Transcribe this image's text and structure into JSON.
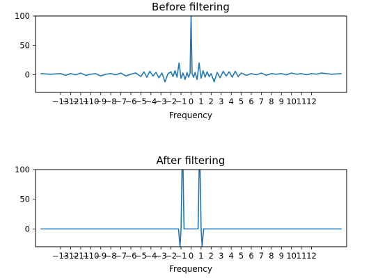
{
  "chart_data": [
    {
      "type": "line",
      "title": "Before filtering",
      "xlabel": "Frequency",
      "ylabel": "",
      "xlim": [
        -15.5,
        15.5
      ],
      "ylim": [
        -30,
        100
      ],
      "yticks": [
        0,
        50,
        100
      ],
      "xticks": [
        -13,
        -12,
        -11,
        -10,
        -9,
        -8,
        -7,
        -6,
        -5,
        -4,
        -3,
        -2,
        -1,
        0,
        1,
        2,
        3,
        4,
        5,
        6,
        7,
        8,
        9,
        10,
        11,
        12
      ],
      "xtick_labels": [
        "−13",
        "−12",
        "−11",
        "−10",
        "−9",
        "−8",
        "−7",
        "−6",
        "−5",
        "−4",
        "−3",
        "−2",
        "−1",
        "0",
        "1",
        "2",
        "3",
        "4",
        "5",
        "6",
        "7",
        "8",
        "9",
        "10",
        "11",
        "12"
      ],
      "grid": false,
      "color": "#1f77b4",
      "series": [
        {
          "x": [
            -15.0,
            -14.0,
            -13.0,
            -12.5,
            -12.0,
            -11.5,
            -11.0,
            -10.5,
            -10.0,
            -9.5,
            -9.0,
            -8.5,
            -8.0,
            -7.5,
            -7.0,
            -6.5,
            -6.0,
            -5.5,
            -5.0,
            -4.7,
            -4.4,
            -4.1,
            -3.8,
            -3.5,
            -3.2,
            -2.9,
            -2.6,
            -2.3,
            -2.0,
            -1.8,
            -1.6,
            -1.4,
            -1.2,
            -1.0,
            -0.8,
            -0.6,
            -0.4,
            -0.25,
            -0.1,
            0.0,
            0.1,
            0.25,
            0.4,
            0.6,
            0.8,
            1.0,
            1.2,
            1.4,
            1.6,
            1.8,
            2.0,
            2.3,
            2.6,
            2.9,
            3.2,
            3.5,
            3.8,
            4.1,
            4.4,
            4.7,
            5.0,
            5.5,
            6.0,
            6.5,
            7.0,
            7.5,
            8.0,
            8.5,
            9.0,
            9.5,
            10.0,
            10.5,
            11.0,
            11.5,
            12.0,
            12.5,
            13.0,
            14.0,
            15.0
          ],
          "y": [
            2,
            1,
            2,
            -1,
            2,
            0,
            3,
            -1,
            1,
            2,
            -2,
            1,
            2,
            0,
            3,
            -2,
            1,
            3,
            -3,
            5,
            -4,
            6,
            -2,
            4,
            -5,
            3,
            -12,
            2,
            5,
            -3,
            7,
            -4,
            20,
            -6,
            3,
            -8,
            4,
            -4,
            2,
            100,
            2,
            -4,
            4,
            -8,
            20,
            -6,
            7,
            -4,
            5,
            -3,
            2,
            -12,
            4,
            -5,
            6,
            -2,
            5,
            -4,
            6,
            -3,
            3,
            -1,
            2,
            0,
            3,
            -1,
            2,
            1,
            2,
            0,
            3,
            1,
            2,
            0,
            2,
            1,
            3,
            1,
            2
          ]
        }
      ]
    },
    {
      "type": "line",
      "title": "After filtering",
      "xlabel": "Frequency",
      "ylabel": "",
      "xlim": [
        -15.5,
        15.5
      ],
      "ylim": [
        -30,
        100
      ],
      "yticks": [
        0,
        50,
        100
      ],
      "xticks": [
        -13,
        -12,
        -11,
        -10,
        -9,
        -8,
        -7,
        -6,
        -5,
        -4,
        -3,
        -2,
        -1,
        0,
        1,
        2,
        3,
        4,
        5,
        6,
        7,
        8,
        9,
        10,
        11,
        12
      ],
      "xtick_labels": [
        "−13",
        "−12",
        "−11",
        "−10",
        "−9",
        "−8",
        "−7",
        "−6",
        "−5",
        "−4",
        "−3",
        "−2",
        "−1",
        "0",
        "1",
        "2",
        "3",
        "4",
        "5",
        "6",
        "7",
        "8",
        "9",
        "10",
        "11",
        "12"
      ],
      "grid": false,
      "color": "#1f77b4",
      "series": [
        {
          "x": [
            -15.0,
            -1.25,
            -1.1,
            -1.0,
            -0.9,
            -0.8,
            -0.7,
            -0.6,
            0.6,
            0.7,
            0.8,
            0.9,
            1.0,
            1.1,
            1.25,
            15.0
          ],
          "y": [
            0,
            0,
            -30,
            0,
            100,
            100,
            0,
            0,
            0,
            0,
            100,
            100,
            0,
            -30,
            0,
            0
          ]
        }
      ]
    }
  ]
}
